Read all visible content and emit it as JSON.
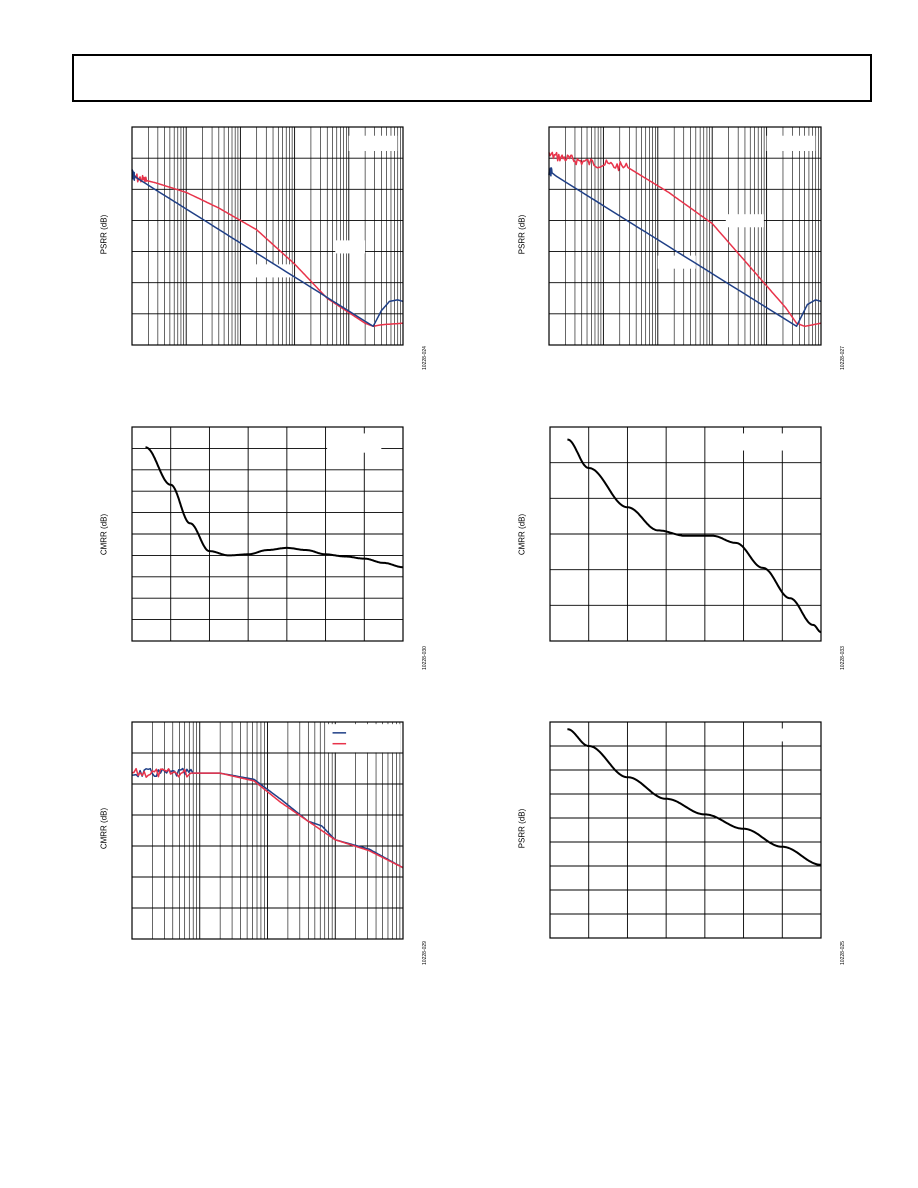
{
  "chart_data": [
    {
      "type": "line",
      "ylabel": "PSRR (dB)",
      "figure_id": "10228-024",
      "xscale": "log",
      "x_decades": 5,
      "y_divisions": 7,
      "series": [
        {
          "color": "#e8334a",
          "noisy_until": 0.3,
          "points": [
            [
              0,
              1.6
            ],
            [
              0.45,
              1.8
            ],
            [
              1.0,
              2.1
            ],
            [
              1.6,
              2.6
            ],
            [
              2.3,
              3.3
            ],
            [
              3.0,
              4.4
            ],
            [
              3.6,
              5.5
            ],
            [
              4.3,
              6.3
            ],
            [
              4.45,
              6.4
            ],
            [
              4.6,
              6.35
            ],
            [
              5,
              6.3
            ]
          ]
        },
        {
          "color": "#1f3f86",
          "noisy_until": 0.05,
          "points": [
            [
              0,
              1.5
            ],
            [
              0.1,
              1.65
            ],
            [
              4.45,
              6.4
            ],
            [
              4.6,
              5.9
            ],
            [
              4.75,
              5.6
            ],
            [
              4.9,
              5.55
            ],
            [
              5,
              5.6
            ]
          ]
        }
      ]
    },
    {
      "type": "line",
      "ylabel": "PSRR (dB)",
      "figure_id": "10228-027",
      "xscale": "log",
      "x_decades": 5,
      "y_divisions": 7,
      "series": [
        {
          "color": "#e8334a",
          "noisy_until": 1.45,
          "points": [
            [
              0,
              0.9
            ],
            [
              0.6,
              1.1
            ],
            [
              1.45,
              1.3
            ],
            [
              2.2,
              2.1
            ],
            [
              3.0,
              3.1
            ],
            [
              3.6,
              4.3
            ],
            [
              4.35,
              5.8
            ],
            [
              4.55,
              6.3
            ],
            [
              4.7,
              6.4
            ],
            [
              5,
              6.3
            ]
          ]
        },
        {
          "color": "#1f3f86",
          "noisy_until": 0.05,
          "points": [
            [
              0,
              1.4
            ],
            [
              0.15,
              1.6
            ],
            [
              4.55,
              6.4
            ],
            [
              4.75,
              5.7
            ],
            [
              4.9,
              5.55
            ],
            [
              5,
              5.6
            ]
          ]
        }
      ]
    },
    {
      "type": "line",
      "ylabel": "CMRR (dB)",
      "figure_id": "10228-030",
      "xscale": "linear",
      "x_divisions": 7,
      "y_divisions": 10,
      "legend_box": true,
      "series": [
        {
          "color": "#000000",
          "points": [
            [
              0.35,
              0.95
            ],
            [
              1.0,
              2.7
            ],
            [
              1.5,
              4.5
            ],
            [
              2.0,
              5.8
            ],
            [
              2.5,
              6.0
            ],
            [
              3.0,
              5.95
            ],
            [
              3.5,
              5.75
            ],
            [
              4.0,
              5.65
            ],
            [
              4.5,
              5.75
            ],
            [
              5.0,
              5.95
            ],
            [
              5.5,
              6.05
            ],
            [
              6.0,
              6.15
            ],
            [
              6.5,
              6.35
            ],
            [
              7.0,
              6.55
            ]
          ]
        }
      ]
    },
    {
      "type": "line",
      "ylabel": "CMRR (dB)",
      "figure_id": "10228-033",
      "xscale": "linear",
      "x_divisions": 7,
      "y_divisions": 6,
      "legend_box": true,
      "series": [
        {
          "color": "#000000",
          "points": [
            [
              0.45,
              0.35
            ],
            [
              1.0,
              1.15
            ],
            [
              2.0,
              2.25
            ],
            [
              2.8,
              2.9
            ],
            [
              3.5,
              3.05
            ],
            [
              4.2,
              3.05
            ],
            [
              4.8,
              3.25
            ],
            [
              5.5,
              3.95
            ],
            [
              6.2,
              4.8
            ],
            [
              6.8,
              5.55
            ],
            [
              7.0,
              5.75
            ]
          ]
        }
      ]
    },
    {
      "type": "line",
      "ylabel": "CMRR (dB)",
      "figure_id": "10228-029",
      "xscale": "log",
      "x_decades": 4,
      "y_divisions": 7,
      "legend_lines": [
        "#1f3f86",
        "#e8334a"
      ],
      "series": [
        {
          "color": "#1f3f86",
          "noisy_until": 0.9,
          "points": [
            [
              0,
              1.65
            ],
            [
              0.9,
              1.65
            ],
            [
              1.3,
              1.65
            ],
            [
              1.8,
              1.85
            ],
            [
              2.2,
              2.5
            ],
            [
              2.6,
              3.2
            ],
            [
              2.8,
              3.35
            ],
            [
              3.0,
              3.8
            ],
            [
              3.5,
              4.1
            ],
            [
              4,
              4.7
            ]
          ]
        },
        {
          "color": "#e8334a",
          "noisy_until": 0.9,
          "points": [
            [
              0,
              1.65
            ],
            [
              0.9,
              1.65
            ],
            [
              1.3,
              1.65
            ],
            [
              1.8,
              1.9
            ],
            [
              2.2,
              2.6
            ],
            [
              2.6,
              3.2
            ],
            [
              3.0,
              3.8
            ],
            [
              3.5,
              4.15
            ],
            [
              4,
              4.7
            ]
          ]
        }
      ]
    },
    {
      "type": "line",
      "ylabel": "PSRR (dB)",
      "figure_id": "10228-025",
      "xscale": "linear",
      "x_divisions": 7,
      "y_divisions": 9,
      "legend_box": true,
      "series": [
        {
          "color": "#000000",
          "points": [
            [
              0.45,
              0.3
            ],
            [
              1.0,
              1.0
            ],
            [
              2.0,
              2.3
            ],
            [
              3.0,
              3.2
            ],
            [
              4.0,
              3.85
            ],
            [
              5.0,
              4.45
            ],
            [
              6.0,
              5.2
            ],
            [
              7.0,
              5.95
            ]
          ]
        }
      ]
    }
  ]
}
